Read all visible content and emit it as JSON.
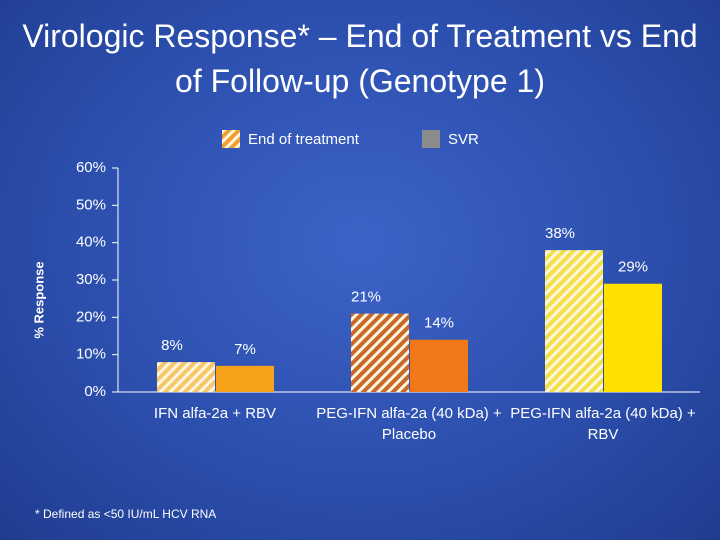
{
  "chart_data": {
    "type": "bar",
    "title": "Virologic Response* – End of Treatment vs End of Follow-up (Genotype 1)",
    "ylabel": "% Response",
    "footnote": "* Defined as <50 IU/mL HCV RNA",
    "categories": [
      "IFN alfa-2a + RBV",
      "PEG-IFN alfa-2a (40 kDa) + Placebo",
      "PEG-IFN alfa-2a (40 kDa) + RBV"
    ],
    "series": [
      {
        "name": "End of treatment",
        "color": "#f0a030",
        "hatch": true,
        "bar_colors": [
          "#f5c76a",
          "#c8692a",
          "#f5e04a"
        ],
        "values": [
          8,
          21,
          38
        ],
        "value_labels": [
          "8%",
          "21%",
          "38%"
        ]
      },
      {
        "name": "SVR",
        "color": "#8c8c8c",
        "hatch": false,
        "bar_colors": [
          "#f7a21b",
          "#f07818",
          "#ffe000"
        ],
        "values": [
          7,
          14,
          29
        ],
        "value_labels": [
          "7%",
          "14%",
          "29%"
        ]
      }
    ],
    "ylim": [
      0,
      60
    ],
    "yticks": [
      {
        "value": 0,
        "label": "0%"
      },
      {
        "value": 10,
        "label": "10%"
      },
      {
        "value": 20,
        "label": "20%"
      },
      {
        "value": 30,
        "label": "30%"
      },
      {
        "value": 40,
        "label": "40%"
      },
      {
        "value": 50,
        "label": "50%"
      },
      {
        "value": 60,
        "label": "60%"
      }
    ]
  }
}
